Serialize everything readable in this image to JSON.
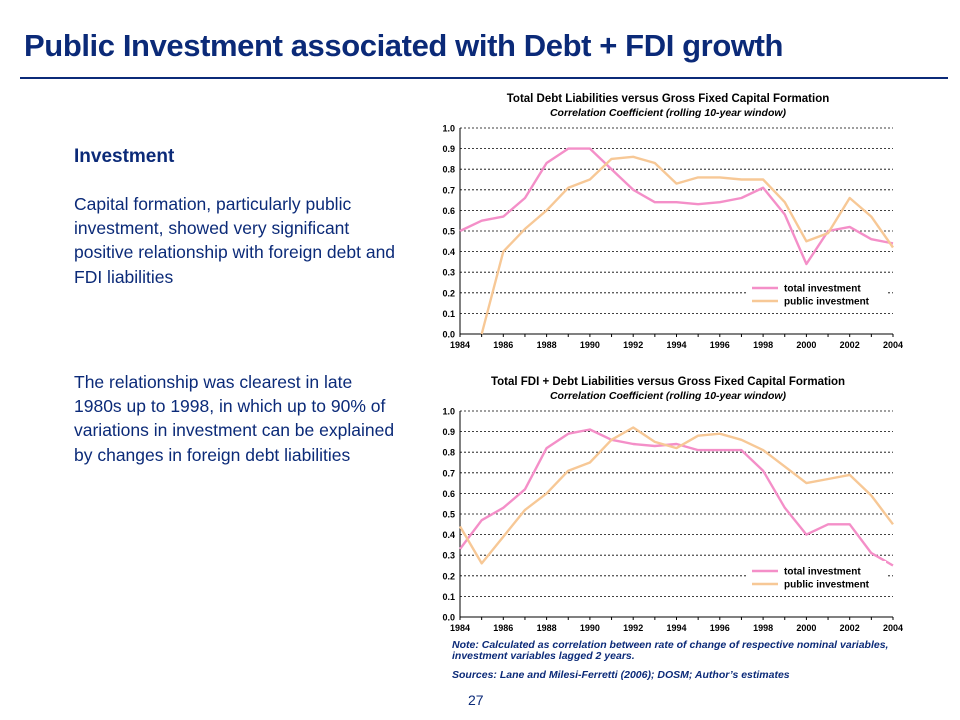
{
  "slide": {
    "title": "Public Investment associated with Debt + FDI growth",
    "heading": "Investment",
    "paragraph1": "Capital formation, particularly public investment, showed very significant positive relationship with foreign debt and FDI liabilities",
    "paragraph2": "The relationship was clearest in late 1980s up to 1998, in which up to 90% of variations in investment can be explained by changes in foreign debt liabilities",
    "note": "Note: Calculated as correlation between rate of change of respective nominal variables, investment variables lagged 2 years.",
    "sources": "Sources: Lane and Milesi-Ferretti (2006); DOSM; Author’s estimates",
    "page_number": "27",
    "colors": {
      "title": "#0b2a78",
      "total_investment": "#f48fc8",
      "public_investment": "#f7c896"
    }
  },
  "chart_data": [
    {
      "type": "line",
      "title": "Total Debt Liabilities versus Gross Fixed Capital Formation",
      "subtitle": "Correlation Coefficient (rolling 10-year window)",
      "x": [
        1984,
        1985,
        1986,
        1987,
        1988,
        1989,
        1990,
        1991,
        1992,
        1993,
        1994,
        1995,
        1996,
        1997,
        1998,
        1999,
        2000,
        2001,
        2002,
        2003,
        2004
      ],
      "xticks": [
        "1984",
        "1986",
        "1988",
        "1990",
        "1992",
        "1994",
        "1996",
        "1998",
        "2000",
        "2002",
        "2004"
      ],
      "yticks": [
        "0.0",
        "0.1",
        "0.2",
        "0.3",
        "0.4",
        "0.5",
        "0.6",
        "0.7",
        "0.8",
        "0.9",
        "1.0"
      ],
      "ylim": [
        0,
        1
      ],
      "grid": true,
      "legend_position": "bottom-right",
      "series": [
        {
          "name": "total investment",
          "color": "#f48fc8",
          "values": [
            0.5,
            0.55,
            0.57,
            0.66,
            0.83,
            0.9,
            0.9,
            0.8,
            0.7,
            0.64,
            0.64,
            0.63,
            0.64,
            0.66,
            0.71,
            0.58,
            0.34,
            0.5,
            0.52,
            0.46,
            0.44
          ]
        },
        {
          "name": "public investment",
          "color": "#f7c896",
          "values": [
            null,
            0.0,
            0.4,
            0.51,
            0.6,
            0.71,
            0.75,
            0.85,
            0.86,
            0.83,
            0.73,
            0.76,
            0.76,
            0.75,
            0.75,
            0.64,
            0.45,
            0.49,
            0.66,
            0.57,
            0.42
          ]
        }
      ]
    },
    {
      "type": "line",
      "title": "Total FDI + Debt Liabilities versus Gross Fixed Capital Formation",
      "subtitle": "Correlation Coefficient (rolling 10-year window)",
      "x": [
        1984,
        1985,
        1986,
        1987,
        1988,
        1989,
        1990,
        1991,
        1992,
        1993,
        1994,
        1995,
        1996,
        1997,
        1998,
        1999,
        2000,
        2001,
        2002,
        2003,
        2004
      ],
      "xticks": [
        "1984",
        "1986",
        "1988",
        "1990",
        "1992",
        "1994",
        "1996",
        "1998",
        "2000",
        "2002",
        "2004"
      ],
      "yticks": [
        "0.0",
        "0.1",
        "0.2",
        "0.3",
        "0.4",
        "0.5",
        "0.6",
        "0.7",
        "0.8",
        "0.9",
        "1.0"
      ],
      "ylim": [
        0,
        1
      ],
      "grid": true,
      "legend_position": "bottom-right",
      "series": [
        {
          "name": "total investment",
          "color": "#f48fc8",
          "values": [
            0.33,
            0.47,
            0.53,
            0.62,
            0.82,
            0.89,
            0.91,
            0.86,
            0.84,
            0.83,
            0.84,
            0.81,
            0.81,
            0.81,
            0.71,
            0.53,
            0.4,
            0.45,
            0.45,
            0.31,
            0.25
          ]
        },
        {
          "name": "public investment",
          "color": "#f7c896",
          "values": [
            0.44,
            0.26,
            0.39,
            0.52,
            0.6,
            0.71,
            0.75,
            0.86,
            0.92,
            0.85,
            0.82,
            0.88,
            0.89,
            0.86,
            0.81,
            0.73,
            0.65,
            0.67,
            0.69,
            0.59,
            0.45
          ]
        }
      ]
    }
  ]
}
